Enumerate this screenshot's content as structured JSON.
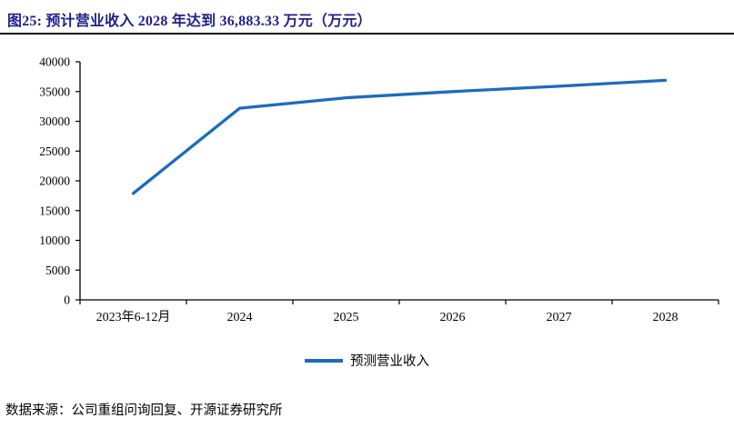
{
  "header": {
    "title": "图25:  预计营业收入 2028 年达到 36,883.33 万元（万元）"
  },
  "legend": {
    "label": "预测营业收入"
  },
  "footer": {
    "source": "数据来源：公司重组问询回复、开源证券研究所"
  },
  "colors": {
    "title_navy": "#21218B",
    "line_blue": "#1B6CBE",
    "axis_black": "#000000"
  },
  "chart_data": {
    "type": "line",
    "title": "预计营业收入 2028 年达到 36,883.33 万元（万元）",
    "categories": [
      "2023年6-12月",
      "2024",
      "2025",
      "2026",
      "2027",
      "2028"
    ],
    "series": [
      {
        "name": "预测营业收入",
        "values": [
          17900,
          32200,
          33950,
          35000,
          35900,
          36883.33
        ]
      }
    ],
    "xlabel": "",
    "ylabel": "",
    "ylim": [
      0,
      40000
    ],
    "ytick_step": 5000,
    "yticks": [
      0,
      5000,
      10000,
      15000,
      20000,
      25000,
      30000,
      35000,
      40000
    ],
    "grid": false,
    "legend_position": "bottom"
  }
}
